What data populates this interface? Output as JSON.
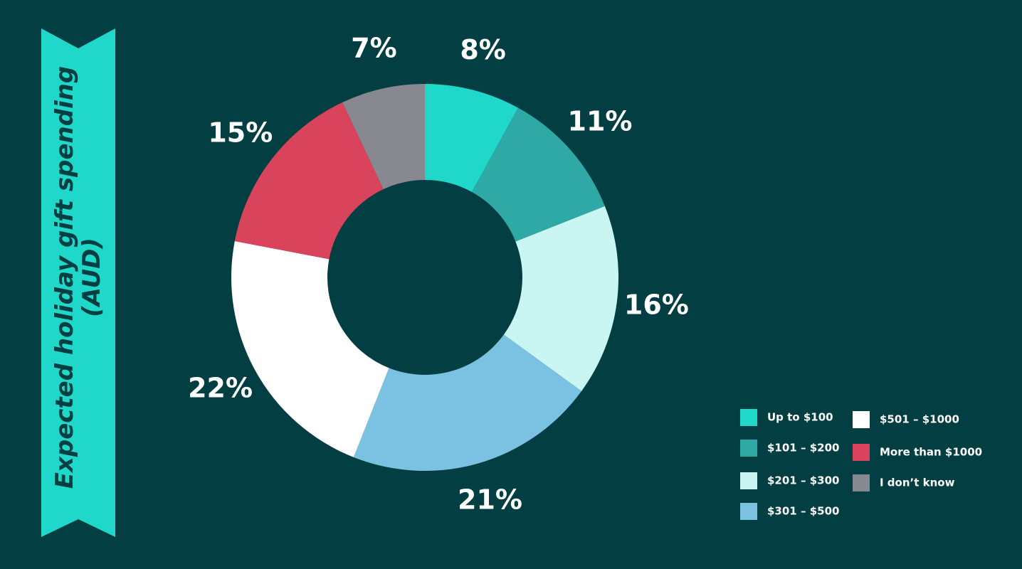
{
  "chart_data": {
    "type": "donut",
    "title": "Expected holiday gift spending (AUD)",
    "categories": [
      "Up to $100",
      "$101 – $200",
      "$201 – $300",
      "$301 – $500",
      "$501 – $1000",
      "More than $1000",
      "I don’t know"
    ],
    "values": [
      8,
      11,
      16,
      21,
      22,
      15,
      7
    ],
    "value_labels": [
      "8%",
      "11%",
      "16%",
      "21%",
      "22%",
      "15%",
      "7%"
    ],
    "colors": [
      "#20d8c9",
      "#2ea9a6",
      "#c9f6f2",
      "#7bc1e1",
      "#ffffff",
      "#d9435b",
      "#888891"
    ]
  }
}
